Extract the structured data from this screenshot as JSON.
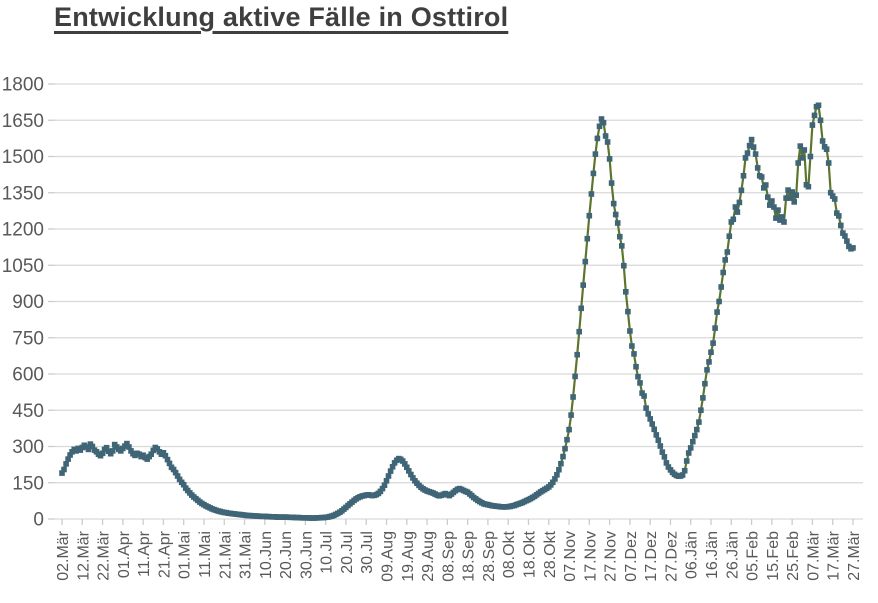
{
  "page": {
    "background": "#ffffff"
  },
  "chart_data": {
    "type": "line",
    "title": "Entwicklung aktive Fälle in Osttirol",
    "xlabel": "",
    "ylabel": "",
    "ylim": [
      0,
      1800
    ],
    "y_ticks": [
      0,
      150,
      300,
      450,
      600,
      750,
      900,
      1050,
      1200,
      1350,
      1500,
      1650,
      1800
    ],
    "grid": "horizontal",
    "legend_position": "none",
    "x_tick_interval_days": 10,
    "x_tick_labels": [
      "02.Mär",
      "12.Mär",
      "22.Mär",
      "01.Apr",
      "11.Apr",
      "21.Apr",
      "01.Mai",
      "11.Mai",
      "21.Mai",
      "31.Mai",
      "10.Jun",
      "20.Jun",
      "30.Jun",
      "10.Jul",
      "20.Jul",
      "30.Jul",
      "09.Aug",
      "19.Aug",
      "29.Aug",
      "08.Sep",
      "18.Sep",
      "28.Sep",
      "08.Okt",
      "18.Okt",
      "28.Okt",
      "07.Nov",
      "17.Nov",
      "27.Nov",
      "07.Dez",
      "17.Dez",
      "27.Dez",
      "06.Jän",
      "16.Jän",
      "26.Jän",
      "05.Feb",
      "15.Feb",
      "25.Feb",
      "07.Mär",
      "17.Mär",
      "27.Mär"
    ],
    "series": [
      {
        "name": "aktive Fälle",
        "marker": "square",
        "values": [
          190,
          205,
          228,
          248,
          265,
          278,
          288,
          282,
          292,
          285,
          296,
          305,
          298,
          288,
          310,
          300,
          285,
          278,
          268,
          262,
          272,
          288,
          295,
          280,
          270,
          282,
          308,
          298,
          288,
          282,
          292,
          302,
          312,
          298,
          282,
          270,
          263,
          272,
          268,
          258,
          264,
          254,
          248,
          258,
          268,
          284,
          296,
          290,
          278,
          268,
          274,
          262,
          246,
          230,
          214,
          205,
          192,
          178,
          164,
          152,
          142,
          128,
          118,
          108,
          99,
          91,
          84,
          77,
          70,
          64,
          59,
          54,
          50,
          46,
          42,
          39,
          36,
          33,
          31,
          29,
          27,
          26,
          24,
          23,
          22,
          21,
          20,
          19,
          18,
          17,
          16,
          15,
          14,
          14,
          13,
          13,
          12,
          12,
          11,
          11,
          11,
          10,
          10,
          9,
          9,
          9,
          8,
          8,
          8,
          8,
          8,
          8,
          7,
          7,
          7,
          6,
          6,
          6,
          5,
          5,
          5,
          5,
          4,
          4,
          4,
          4,
          5,
          5,
          6,
          6,
          7,
          8,
          10,
          12,
          15,
          19,
          23,
          28,
          34,
          41,
          48,
          56,
          63,
          70,
          77,
          83,
          88,
          92,
          95,
          97,
          99,
          100,
          99,
          97,
          98,
          101,
          106,
          114,
          126,
          140,
          158,
          178,
          198,
          216,
          232,
          243,
          250,
          247,
          240,
          228,
          214,
          199,
          184,
          170,
          158,
          148,
          139,
          131,
          125,
          120,
          116,
          113,
          110,
          107,
          103,
          99,
          96,
          98,
          102,
          105,
          100,
          97,
          103,
          110,
          117,
          123,
          126,
          122,
          118,
          114,
          111,
          104,
          97,
          89,
          83,
          77,
          72,
          67,
          63,
          61,
          59,
          57,
          55,
          54,
          53,
          52,
          51,
          50,
          50,
          50,
          51,
          52,
          54,
          56,
          59,
          62,
          65,
          68,
          72,
          76,
          80,
          84,
          89,
          94,
          100,
          106,
          112,
          117,
          122,
          127,
          133,
          141,
          152,
          166,
          183,
          204,
          229,
          258,
          291,
          328,
          370,
          430,
          505,
          590,
          680,
          775,
          872,
          968,
          1065,
          1160,
          1255,
          1345,
          1430,
          1510,
          1575,
          1625,
          1655,
          1640,
          1585,
          1560,
          1490,
          1390,
          1305,
          1260,
          1225,
          1168,
          1130,
          1048,
          940,
          858,
          778,
          716,
          683,
          630,
          589,
          563,
          521,
          509,
          459,
          435,
          414,
          393,
          371,
          348,
          326,
          302,
          277,
          257,
          232,
          215,
          203,
          193,
          185,
          180,
          177,
          178,
          182,
          200,
          240,
          273,
          294,
          320,
          345,
          370,
          401,
          450,
          501,
          560,
          617,
          650,
          690,
          728,
          790,
          856,
          900,
          960,
          1020,
          1072,
          1105,
          1170,
          1229,
          1240,
          1291,
          1270,
          1310,
          1360,
          1420,
          1494,
          1514,
          1545,
          1570,
          1539,
          1510,
          1453,
          1420,
          1415,
          1370,
          1382,
          1332,
          1299,
          1316,
          1291,
          1245,
          1278,
          1237,
          1250,
          1229,
          1328,
          1361,
          1328,
          1353,
          1312,
          1340,
          1473,
          1543,
          1494,
          1527,
          1383,
          1375,
          1500,
          1630,
          1670,
          1706,
          1712,
          1650,
          1564,
          1540,
          1530,
          1473,
          1350,
          1336,
          1324,
          1266,
          1254,
          1215,
          1183,
          1171,
          1150,
          1128,
          1118,
          1122
        ]
      }
    ],
    "colors": {
      "line": "#5d752d",
      "marker": "#3f6577",
      "gridline": "#d9d9d9",
      "tick": "#c9cdce",
      "axis_labels": "#595959",
      "title": "#3f3f3f"
    }
  }
}
